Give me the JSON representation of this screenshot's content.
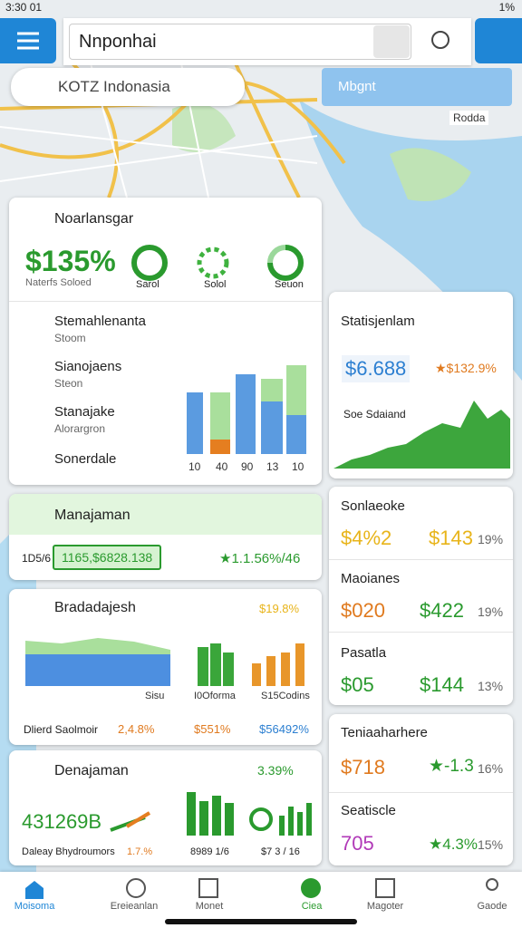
{
  "status": {
    "time": "3:30 01",
    "battery": "1%"
  },
  "search": {
    "query": "Nnponhai"
  },
  "location": {
    "label": "KOTZ Indonasia"
  },
  "map": {
    "badge": "Mbgnt",
    "place": "Rodda"
  },
  "overview": {
    "title": "Noarlansgar",
    "amount": "$135%",
    "subtitle": "Naterfs Soloed",
    "gauges": [
      "Sarol",
      "Solol",
      "Seuon"
    ]
  },
  "list": {
    "items": [
      {
        "title": "Stemahlenanta",
        "sub": "Stoom"
      },
      {
        "title": "Sianojaens",
        "sub": "Steon"
      },
      {
        "title": "Stanajake",
        "sub": "Alorargron"
      },
      {
        "title": "Sonerdale"
      }
    ],
    "axis": [
      "10",
      "40",
      "90",
      "13",
      "10"
    ]
  },
  "stats": {
    "title": "Statisjenlam",
    "value": "$6.688",
    "change": "★$132.9%",
    "chart_label": "Soe Sdaiand"
  },
  "manage": {
    "title": "Manajaman",
    "code": "1D5/6",
    "value": "1165,$6828.138",
    "change": "★1.1.56%/46"
  },
  "breakdown": {
    "title": "Bradadajesh",
    "pct": "$19.8%",
    "labels": [
      "Sisu",
      "I0Oforma",
      "S15Codins"
    ],
    "footer": "Dlierd Saolmoir",
    "footer_values": [
      "2,4.8%",
      "$551%",
      "$56492%"
    ]
  },
  "denajaman": {
    "title": "Denajaman",
    "pct": "3.39%",
    "value": "431269B",
    "footer": "Daleay Bhydroumors",
    "footer_values": [
      "1.7.%",
      "8989 1/6",
      "$7 3 / 16"
    ]
  },
  "side": [
    {
      "title": "Sonlaeoke",
      "values": [
        "$4%2",
        "$143",
        "19%"
      ]
    },
    {
      "title": "Maoianes",
      "values": [
        "$020",
        "$422",
        "19%"
      ]
    },
    {
      "title": "Pasatla",
      "values": [
        "$05",
        "$144",
        "13%"
      ]
    }
  ],
  "side2": [
    {
      "title": "Teniaaharhere",
      "values": [
        "$718",
        "★-1.3",
        "16%"
      ]
    },
    {
      "title": "Seatiscle",
      "values": [
        "705",
        "★4.3%",
        "15%"
      ]
    }
  ],
  "nav": [
    "Moisoma",
    "Ereieanlan",
    "Monet",
    "Ciea",
    "Magoter",
    "Gaode"
  ]
}
